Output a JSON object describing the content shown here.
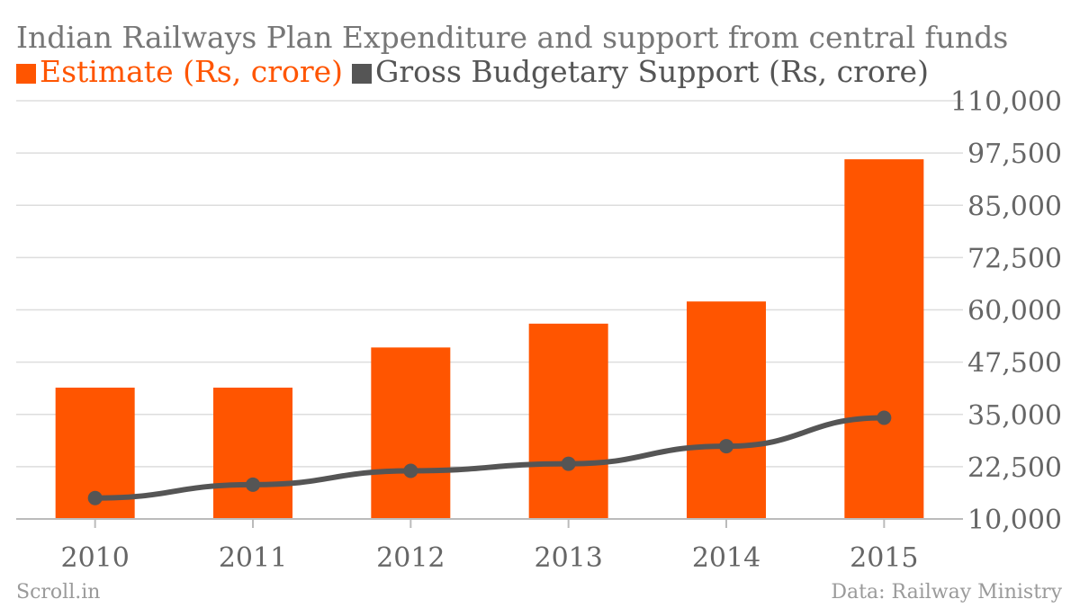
{
  "chart_data": {
    "type": "bar",
    "title": "Indian Railways Plan Expenditure and support from central funds",
    "categories": [
      "2010",
      "2011",
      "2012",
      "2013",
      "2014",
      "2015"
    ],
    "series": [
      {
        "name": "Estimate (Rs, crore)",
        "type": "bar",
        "color": "#FF5500",
        "values": [
          41400,
          41400,
          51000,
          56700,
          62000,
          96000
        ]
      },
      {
        "name": "Gross Budgetary Support (Rs, crore)",
        "type": "line",
        "color": "#555555",
        "values": [
          15000,
          18200,
          21500,
          23200,
          27400,
          34200
        ]
      }
    ],
    "xlabel": "",
    "ylabel": "",
    "ylim": [
      10000,
      110000
    ],
    "yticks": [
      "10,000",
      "22,500",
      "35,000",
      "47,500",
      "60,000",
      "72,500",
      "85,000",
      "97,500",
      "110,000"
    ],
    "ytick_values": [
      10000,
      22500,
      35000,
      47500,
      60000,
      72500,
      85000,
      97500,
      110000
    ],
    "y_axis_side": "right",
    "grid": true,
    "legend_position": "top-left"
  },
  "footer": {
    "source_left": "Scroll.in",
    "source_right": "Data: Railway Ministry"
  },
  "colors": {
    "grid": "#dddddd",
    "axis": "#bbbbbb",
    "text": "#666666"
  }
}
